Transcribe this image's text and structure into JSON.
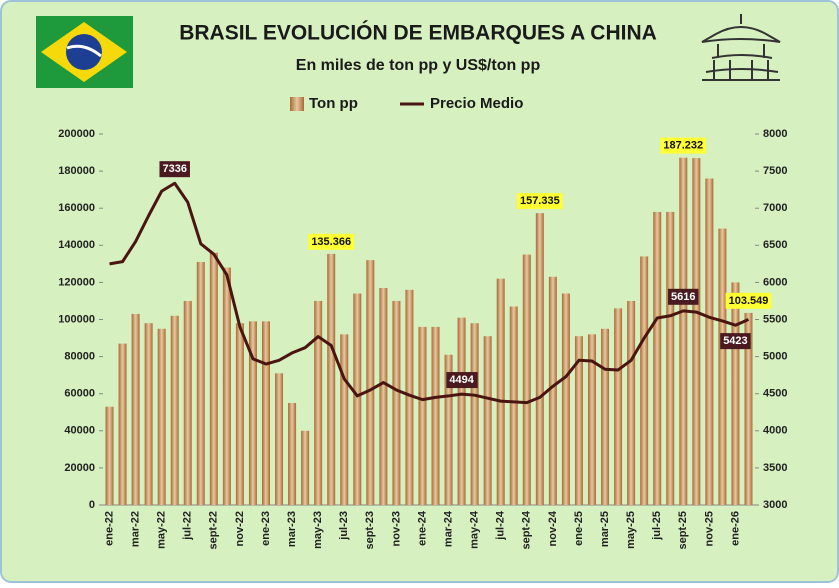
{
  "chart_data": {
    "type": "bar-line",
    "title": "BRASIL EVOLUCIÓN DE EMBARQUES A CHINA",
    "subtitle": "En miles de ton pp y US$/ton pp",
    "categories": [
      "ene-22",
      null,
      "mar-22",
      null,
      "may-22",
      null,
      "jul-22",
      null,
      "sept-22",
      null,
      "nov-22",
      null,
      "ene-23",
      null,
      "mar-23",
      null,
      "may-23",
      null,
      "jul-23",
      null,
      "sept-23",
      null,
      "nov-23",
      null,
      "ene-24",
      null,
      "mar-24",
      null,
      "may-24",
      null,
      "jul-24",
      null,
      "sept-24",
      null,
      "nov-24",
      null,
      "ene-25",
      null,
      "mar-25",
      null,
      "may-25",
      null,
      "jul-25",
      null,
      "sept-25",
      null,
      "nov-25",
      null,
      "ene-26",
      null
    ],
    "series": [
      {
        "name": "Ton pp",
        "type": "bar",
        "color": "#b97a45",
        "values": [
          53000,
          87000,
          103000,
          98000,
          95000,
          102000,
          110000,
          131000,
          136000,
          128000,
          98000,
          99000,
          99000,
          71000,
          55000,
          40000,
          110000,
          135366,
          92000,
          114000,
          132000,
          117000,
          110000,
          116000,
          96000,
          96000,
          81000,
          101000,
          98000,
          91000,
          122000,
          107000,
          135000,
          157335,
          123000,
          114000,
          91000,
          92000,
          95000,
          106000,
          110000,
          134000,
          158000,
          158000,
          187232,
          187000,
          176000,
          149000,
          120000,
          103549
        ],
        "value_labels": [
          null,
          null,
          null,
          null,
          null,
          null,
          null,
          null,
          null,
          null,
          null,
          null,
          null,
          null,
          null,
          null,
          null,
          "135.366",
          null,
          null,
          null,
          null,
          null,
          null,
          null,
          null,
          null,
          null,
          null,
          null,
          null,
          null,
          null,
          "157.335",
          null,
          null,
          null,
          null,
          null,
          null,
          null,
          null,
          null,
          null,
          "187.232",
          null,
          null,
          null,
          null,
          "103.549"
        ]
      },
      {
        "name": "Precio Medio",
        "type": "line",
        "axis": "y2",
        "color": "#4a1510",
        "values": [
          6250,
          6280,
          6550,
          6900,
          7230,
          7336,
          7080,
          6520,
          6380,
          6100,
          5400,
          4970,
          4900,
          4950,
          5050,
          5120,
          5270,
          5150,
          4700,
          4470,
          4550,
          4650,
          4550,
          4480,
          4420,
          4450,
          4470,
          4494,
          4480,
          4440,
          4400,
          4390,
          4380,
          4450,
          4600,
          4730,
          4950,
          4940,
          4830,
          4820,
          4950,
          5250,
          5520,
          5550,
          5616,
          5600,
          5530,
          5480,
          5423,
          5500
        ],
        "value_labels": [
          null,
          null,
          null,
          null,
          null,
          "7336",
          null,
          null,
          null,
          null,
          null,
          null,
          null,
          null,
          null,
          null,
          null,
          null,
          null,
          null,
          null,
          null,
          null,
          null,
          null,
          null,
          null,
          "4494",
          null,
          null,
          null,
          null,
          null,
          null,
          null,
          null,
          null,
          null,
          null,
          null,
          null,
          null,
          null,
          null,
          "5616",
          null,
          null,
          null,
          "5423",
          null
        ]
      }
    ],
    "ylim": [
      0,
      200000
    ],
    "yticks": [
      0,
      20000,
      40000,
      60000,
      80000,
      100000,
      120000,
      140000,
      160000,
      180000,
      200000
    ],
    "y2lim": [
      3000,
      8000
    ],
    "y2ticks": [
      3000,
      3500,
      4000,
      4500,
      5000,
      5500,
      6000,
      6500,
      7000,
      7500,
      8000
    ],
    "legend": "top"
  }
}
